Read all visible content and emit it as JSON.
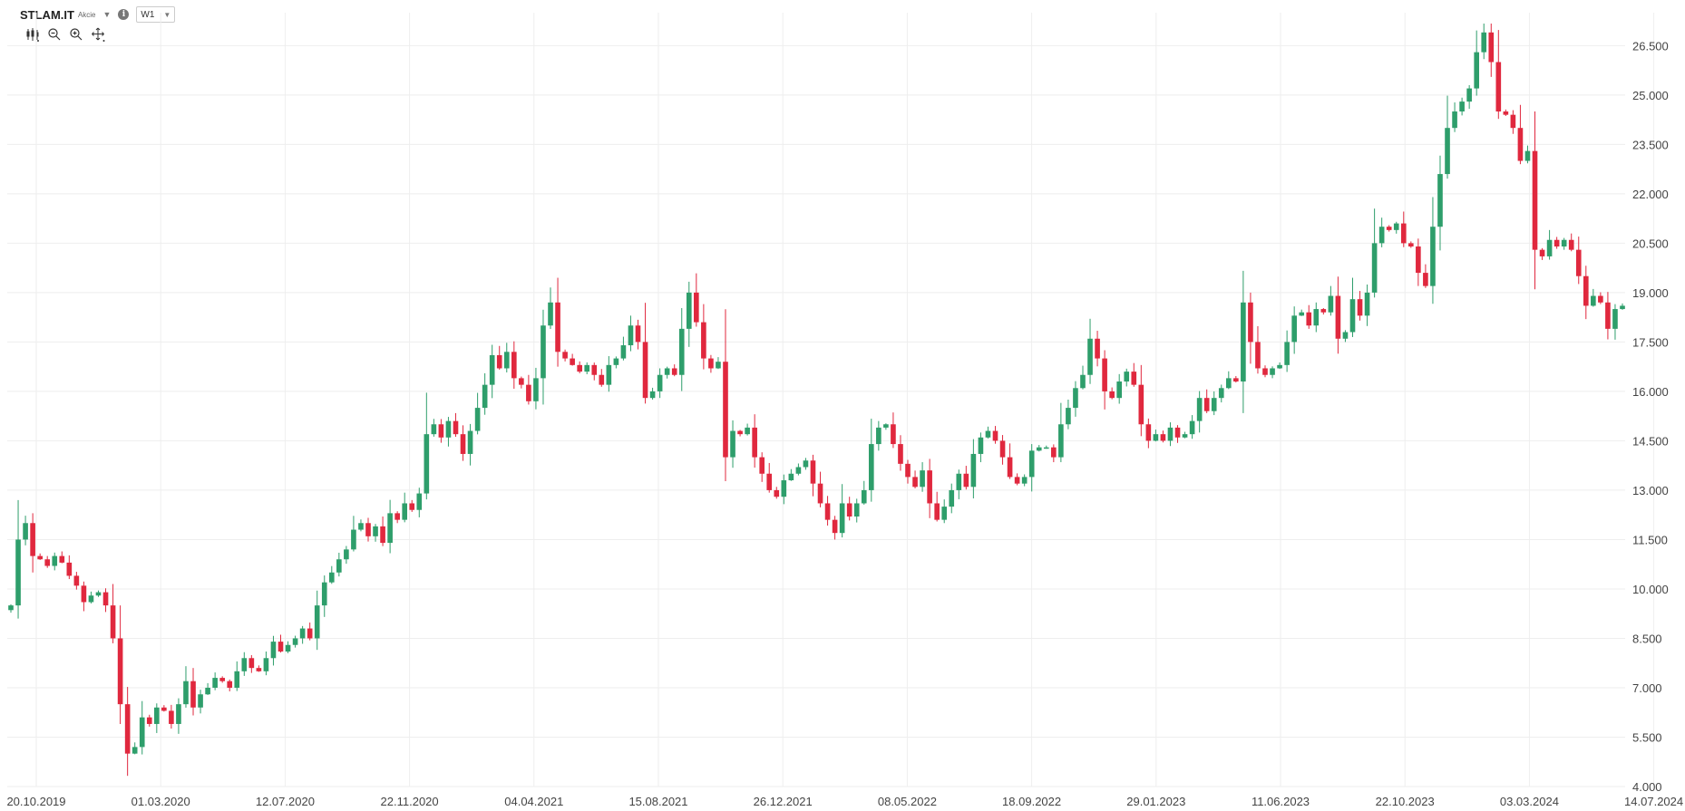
{
  "header": {
    "symbol": "STLAM.IT",
    "asset_type": "Akcie",
    "info_glyph": "i",
    "timeframe": "W1"
  },
  "toolbar": {
    "icons": [
      "candlestick-type-icon",
      "zoom-out-icon",
      "zoom-in-icon",
      "crosshair-move-icon"
    ]
  },
  "colors": {
    "up": "#2e9e6b",
    "down": "#e0283e",
    "grid": "#eeeeee"
  },
  "chart_data": {
    "type": "candlestick",
    "ylim": [
      4000,
      27500
    ],
    "y_ticks": [
      4000,
      5500,
      7000,
      8500,
      10000,
      11500,
      13000,
      14500,
      16000,
      17500,
      19000,
      20500,
      22000,
      23500,
      25000,
      26500
    ],
    "y_tick_labels": [
      "4.000",
      "5.500",
      "7.000",
      "8.500",
      "10.000",
      "11.500",
      "13.000",
      "14.500",
      "16.000",
      "17.500",
      "19.000",
      "20.500",
      "22.000",
      "23.500",
      "25.000",
      "26.500"
    ],
    "x_tick_labels": [
      "20.10.2019",
      "01.03.2020",
      "12.07.2020",
      "22.11.2020",
      "04.04.2021",
      "15.08.2021",
      "26.12.2021",
      "08.05.2022",
      "18.09.2022",
      "29.01.2023",
      "11.06.2023",
      "22.10.2023",
      "03.03.2024",
      "14.07.2024"
    ],
    "close": [
      9500,
      11500,
      12000,
      11000,
      10900,
      10700,
      11000,
      10800,
      10400,
      10100,
      9600,
      9800,
      9900,
      9500,
      8500,
      6500,
      5000,
      5200,
      6100,
      5900,
      6400,
      6300,
      5900,
      6500,
      7200,
      6400,
      6800,
      7000,
      7300,
      7200,
      7000,
      7500,
      7900,
      7600,
      7500,
      7900,
      8400,
      8100,
      8300,
      8500,
      8800,
      8500,
      9500,
      10200,
      10500,
      10900,
      11200,
      11800,
      12000,
      11600,
      11900,
      11400,
      12300,
      12100,
      12600,
      12400,
      12900,
      14700,
      15000,
      14600,
      15100,
      14700,
      14100,
      14800,
      15500,
      16200,
      17100,
      16700,
      17200,
      16400,
      16200,
      15700,
      16400,
      18000,
      18700,
      17200,
      17000,
      16800,
      16600,
      16800,
      16500,
      16200,
      16800,
      17000,
      17400,
      18000,
      17500,
      15800,
      16000,
      16500,
      16700,
      16500,
      17900,
      19000,
      18100,
      17000,
      16700,
      16900,
      14000,
      14800,
      14700,
      14900,
      14000,
      13500,
      13000,
      12800,
      13300,
      13500,
      13700,
      13900,
      13200,
      12600,
      12100,
      11700,
      12600,
      12200,
      12600,
      13000,
      14400,
      14900,
      15000,
      14400,
      13800,
      13400,
      13100,
      13600,
      12600,
      12100,
      12500,
      13000,
      13500,
      13100,
      14100,
      14600,
      14800,
      14500,
      14000,
      13400,
      13200,
      13400,
      14200,
      14300,
      14300,
      14000,
      15000,
      15500,
      16100,
      16500,
      17600,
      17000,
      16000,
      15800,
      16300,
      16600,
      16200,
      15000,
      14500,
      14700,
      14500,
      14900,
      14600,
      14700,
      15100,
      15800,
      15400,
      15800,
      16100,
      16400,
      16300,
      18700,
      17500,
      16700,
      16500,
      16700,
      16800,
      17500,
      18300,
      18400,
      18000,
      18500,
      18400,
      18900,
      17600,
      17800,
      18800,
      18300,
      19000,
      20500,
      21000,
      20900,
      21100,
      20500,
      20400,
      19600,
      19200,
      21000,
      22600,
      24000,
      24500,
      24800,
      25200,
      26300,
      26900,
      26000,
      24500,
      24400,
      24000,
      23000,
      23300,
      20300,
      20100,
      20600,
      20400,
      20600,
      20300,
      19500,
      18600,
      18900,
      18700,
      17900,
      18500,
      18600
    ]
  }
}
